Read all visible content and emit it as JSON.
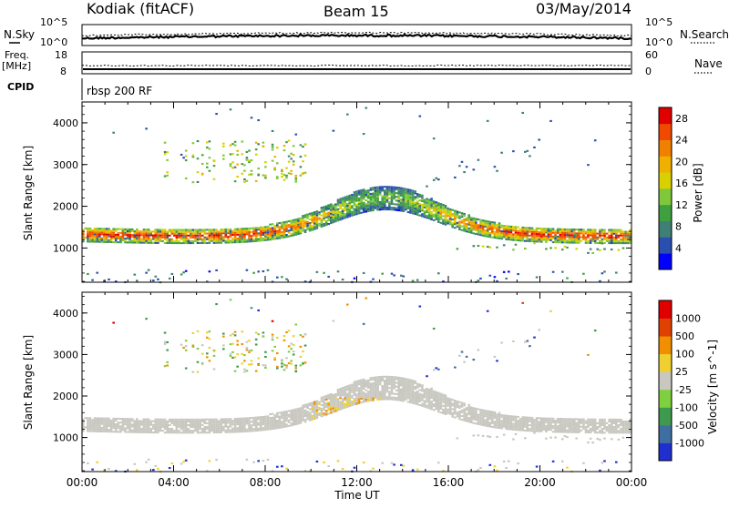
{
  "header": {
    "station": "Kodiak (fitACF)",
    "beam": "Beam 15",
    "date": "03/May/2014"
  },
  "noise_panel": {
    "left_label": "N.Sky",
    "left_ticks": [
      "10^5",
      "10^0"
    ],
    "right_label": "N.Search",
    "right_ticks": [
      "10^5",
      "10^0"
    ]
  },
  "freq_panel": {
    "left_label_1": "Freq.",
    "left_label_2": "[MHz]",
    "left_ticks": [
      "18",
      "8"
    ],
    "right_label": "Nave",
    "right_ticks": [
      "60",
      "0"
    ]
  },
  "cpid": {
    "label": "CPID",
    "value": "rbsp 200 RF"
  },
  "chart_data": [
    {
      "type": "heatmap",
      "title": "Power",
      "ylabel": "Slant Range [km]",
      "xlabel": "",
      "y_ticks": [
        1000,
        2000,
        3000,
        4000
      ],
      "ylim": [
        180,
        4500
      ],
      "xlim": [
        "00:00",
        "24:00"
      ],
      "colorbar": {
        "label": "Power [dB]",
        "range": [
          0,
          30
        ],
        "ticks": [
          4,
          8,
          12,
          16,
          20,
          24,
          28
        ],
        "colors": [
          "#0000ff",
          "#2a4fb0",
          "#3f7f74",
          "#3fa040",
          "#7fc83a",
          "#d8d000",
          "#f0b000",
          "#f08000",
          "#f04a00",
          "#e00000"
        ]
      },
      "features": [
        {
          "name": "main band",
          "range_km_start": 1350,
          "range_km_peak": 2200,
          "power_db_max": 30
        }
      ]
    },
    {
      "type": "heatmap",
      "title": "Velocity",
      "ylabel": "Slant Range [km]",
      "xlabel": "Time UT",
      "x_ticks": [
        "00:00",
        "04:00",
        "08:00",
        "12:00",
        "16:00",
        "20:00",
        "00:00"
      ],
      "y_ticks": [
        1000,
        2000,
        3000,
        4000
      ],
      "ylim": [
        180,
        4500
      ],
      "colorbar": {
        "label": "Velocity [m s^-1]",
        "ticks": [
          "1000",
          "500",
          "100",
          "25",
          "-25",
          "-100",
          "-500",
          "-1000"
        ],
        "colors": [
          "#1f2fd0",
          "#3f6fa0",
          "#3f9a4f",
          "#7fd040",
          "#c8c8c0",
          "#f0d030",
          "#f09000",
          "#e04000",
          "#e00000"
        ]
      }
    }
  ]
}
